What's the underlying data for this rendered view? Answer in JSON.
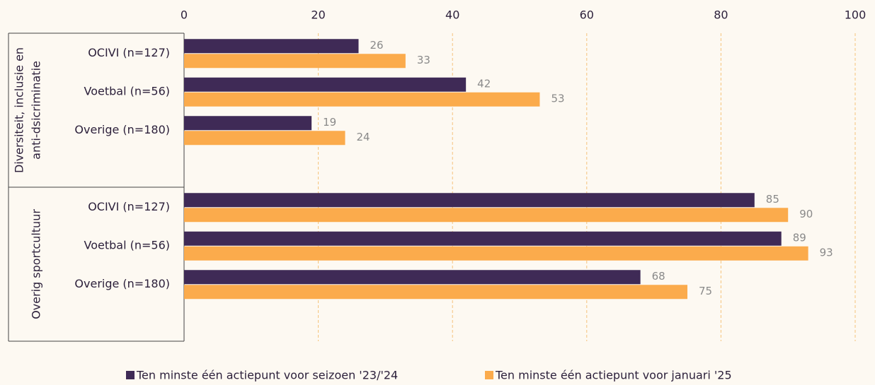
{
  "chart_data": {
    "type": "hbar",
    "groups": [
      {
        "name": [
          "Diversiteit, inclusie en",
          "anti-dsicriminatie"
        ],
        "categories": [
          "OCIVI (n=127)",
          "Voetbal (n=56)",
          "Overige (n=180)"
        ]
      },
      {
        "name": [
          "Overig sportcultuur"
        ],
        "categories": [
          "OCIVI (n=127)",
          "Voetbal (n=56)",
          "Overige (n=180)"
        ]
      }
    ],
    "series": [
      {
        "name": "Ten minste één actiepunt voor seizoen '23/'24",
        "color": "#3f2a56",
        "values": [
          26,
          42,
          19,
          85,
          89,
          68
        ]
      },
      {
        "name": "Ten minste één actiepunt voor januari '25",
        "color": "#fbab4c",
        "values": [
          33,
          53,
          24,
          90,
          93,
          75
        ]
      }
    ],
    "xlim": [
      0,
      100
    ],
    "xticks": [
      0,
      20,
      40,
      60,
      80,
      100
    ],
    "grid": true
  }
}
